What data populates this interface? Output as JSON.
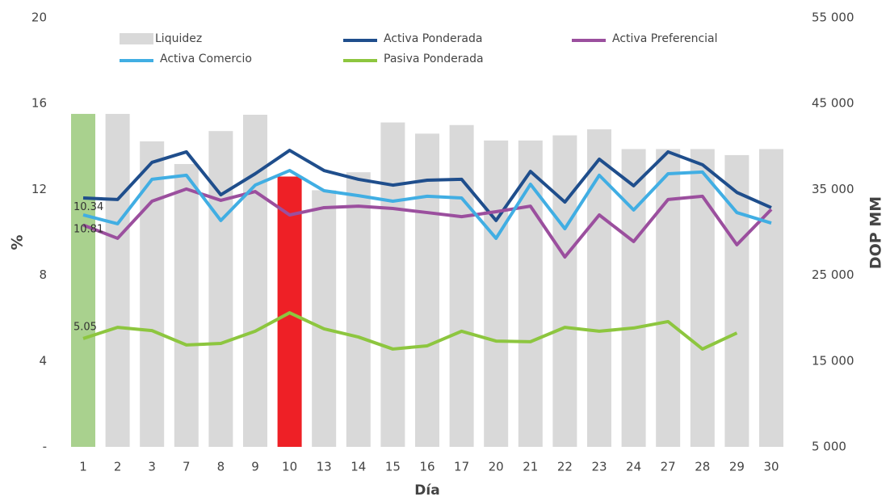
{
  "chart_data": {
    "type": "bar_line",
    "categories": [
      "1",
      "2",
      "3",
      "7",
      "8",
      "9",
      "10",
      "13",
      "14",
      "15",
      "16",
      "17",
      "20",
      "21",
      "22",
      "23",
      "24",
      "27",
      "28",
      "29",
      "30"
    ],
    "x_label": "Día",
    "y_label": "%",
    "y2_label": "DOP MM",
    "ylim": [
      0,
      20
    ],
    "yticks": [
      {
        "value": 0,
        "label": "-"
      },
      4,
      8,
      12,
      16,
      20
    ],
    "y2lim": [
      5000,
      55000
    ],
    "y2ticks": [
      {
        "value": 5000,
        "label": "5 000"
      },
      {
        "value": 15000,
        "label": "15 000"
      },
      {
        "value": 25000,
        "label": "25 000"
      },
      {
        "value": 35000,
        "label": "35 000"
      },
      {
        "value": 45000,
        "label": "45 000"
      },
      {
        "value": 55000,
        "label": "55 000"
      }
    ],
    "series": [
      {
        "name": "Liquidez",
        "type": "bar",
        "axis": "y2",
        "color": "#d9d9d9",
        "colors": [
          "#a9d18e",
          "#d9d9d9",
          "#d9d9d9",
          "#d9d9d9",
          "#d9d9d9",
          "#d9d9d9",
          "#ee2026",
          "#d9d9d9",
          "#d9d9d9",
          "#d9d9d9",
          "#d9d9d9",
          "#d9d9d9",
          "#d9d9d9",
          "#d9d9d9",
          "#d9d9d9",
          "#d9d9d9",
          "#d9d9d9",
          "#d9d9d9",
          "#d9d9d9",
          "#d9d9d9",
          "#d9d9d9"
        ],
        "values": [
          43800,
          43800,
          40600,
          37960,
          41800,
          43700,
          36500,
          34900,
          37000,
          42800,
          41500,
          42500,
          40700,
          40700,
          41300,
          42000,
          39700,
          39700,
          39700,
          39000,
          39700
        ]
      },
      {
        "name": "Activa Ponderada",
        "type": "line",
        "color": "#1f4e8c",
        "values": [
          11.6,
          11.53,
          13.26,
          13.75,
          11.75,
          12.73,
          13.82,
          12.88,
          12.47,
          12.2,
          12.43,
          12.47,
          10.55,
          12.84,
          11.41,
          13.41,
          12.17,
          13.75,
          13.15,
          11.86,
          11.15
        ]
      },
      {
        "name": "Activa Preferencial",
        "type": "line",
        "color": "#9b4f9e",
        "values": [
          10.34,
          9.72,
          11.45,
          12.02,
          11.49,
          11.9,
          10.81,
          11.15,
          11.22,
          11.11,
          10.92,
          10.73,
          10.96,
          11.22,
          8.85,
          10.81,
          9.57,
          11.53,
          11.68,
          9.42,
          11.07
        ],
        "value_labels": [
          "10.34",
          null,
          null,
          null,
          null,
          null,
          null,
          null,
          null,
          null,
          null,
          null,
          null,
          null,
          null,
          null,
          null,
          null,
          null,
          null,
          null
        ]
      },
      {
        "name": "Activa Comercio",
        "type": "line",
        "color": "#41aee3",
        "values": [
          10.81,
          10.4,
          12.47,
          12.66,
          10.55,
          12.2,
          12.88,
          11.94,
          11.71,
          11.45,
          11.68,
          11.6,
          9.72,
          12.24,
          10.17,
          12.66,
          11.04,
          12.73,
          12.81,
          10.92,
          10.43
        ],
        "value_labels": [
          "10.81",
          null,
          null,
          null,
          null,
          null,
          null,
          null,
          null,
          null,
          null,
          null,
          null,
          null,
          null,
          null,
          null,
          null,
          null,
          null,
          null
        ]
      },
      {
        "name": "Pasiva Ponderada",
        "type": "line",
        "color": "#8dc63f",
        "values": [
          5.05,
          5.57,
          5.42,
          4.75,
          4.82,
          5.39,
          6.25,
          5.5,
          5.12,
          4.56,
          4.71,
          5.39,
          4.93,
          4.9,
          5.57,
          5.39,
          5.54,
          5.84,
          4.56,
          5.31,
          null
        ],
        "value_labels": [
          "5.05",
          null,
          null,
          null,
          null,
          null,
          null,
          null,
          null,
          null,
          null,
          null,
          null,
          null,
          null,
          null,
          null,
          null,
          null,
          null,
          null
        ]
      }
    ]
  }
}
